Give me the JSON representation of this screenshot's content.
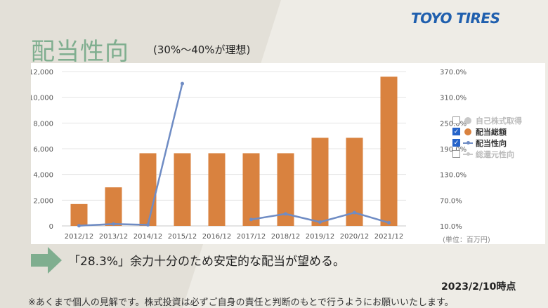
{
  "header": {
    "logo": "TOYO TIRES",
    "title": "配当性向",
    "subtitle": "(30%〜40%が理想)"
  },
  "chart_data": {
    "type": "bar",
    "categories": [
      "2012/12",
      "2013/12",
      "2014/12",
      "2015/12",
      "2016/12",
      "2017/12",
      "2018/12",
      "2019/12",
      "2020/12",
      "2021/12"
    ],
    "series": [
      {
        "name": "配当総額",
        "axis": "left",
        "type": "bar",
        "color": "#d9823f",
        "values": [
          1700,
          3000,
          5650,
          5650,
          5650,
          5650,
          5650,
          6850,
          6850,
          11600
        ]
      },
      {
        "name": "配当性向",
        "axis": "right",
        "type": "line",
        "color": "#6f8cc4",
        "values": [
          10.5,
          14.5,
          12.5,
          342,
          null,
          25.0,
          38.0,
          19.0,
          41.0,
          17.5
        ]
      }
    ],
    "y_left_ticks": [
      "0",
      "2,000",
      "4,000",
      "6,000",
      "8,000",
      "10,000",
      "12,000"
    ],
    "y_left_range": [
      0,
      12000
    ],
    "y_right_ticks": [
      "10.0%",
      "70.0%",
      "130.0%",
      "190.0%",
      "250.0%",
      "310.0%",
      "370.0%"
    ],
    "y_right_range": [
      10,
      370
    ],
    "legend": [
      {
        "label": "自己株式取得",
        "checked": false,
        "symbol": "dot",
        "color": "#c8c8c8",
        "text_color": "#bbbbbb"
      },
      {
        "label": "配当総額",
        "checked": true,
        "symbol": "dot",
        "color": "#d9823f",
        "text_color": "#333333"
      },
      {
        "label": "配当性向",
        "checked": true,
        "symbol": "line",
        "color": "#6f8cc4",
        "text_color": "#333333"
      },
      {
        "label": "総還元性向",
        "checked": false,
        "symbol": "line",
        "color": "#c8c8c8",
        "text_color": "#bbbbbb"
      }
    ],
    "unit": "(単位：百万円)",
    "grid": true,
    "legend_position": "right"
  },
  "footer": {
    "message": "「28.3%」余力十分のため安定的な配当が望める。",
    "date": "2023/2/10時点",
    "disclaimer": "※あくまで個人の見解です。株式投資は必ずご自身の責任と判断のもとで行うようにお願いいたします。"
  }
}
